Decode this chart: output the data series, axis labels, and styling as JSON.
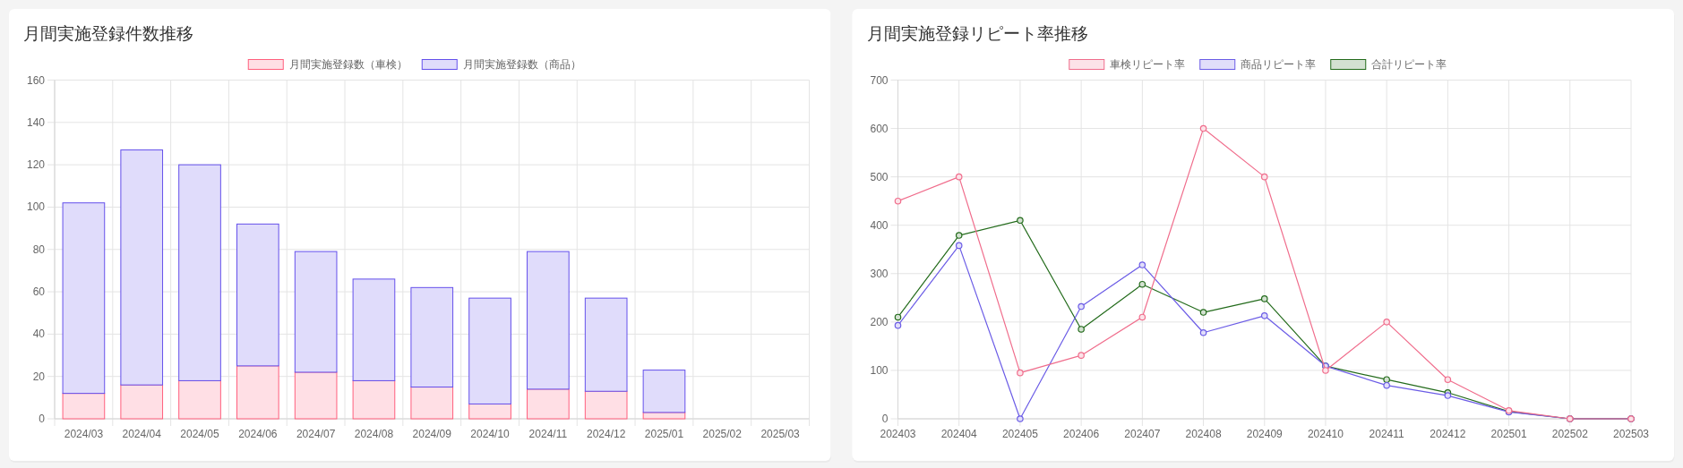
{
  "chart_data": [
    {
      "type": "bar",
      "title": "月間実施登録件数推移",
      "categories": [
        "2024/03",
        "2024/04",
        "2024/05",
        "2024/06",
        "2024/07",
        "2024/08",
        "2024/09",
        "2024/10",
        "2024/11",
        "2024/12",
        "2025/01",
        "2025/02",
        "2025/03"
      ],
      "stacked": true,
      "series": [
        {
          "name": "月間実施登録数（車検）",
          "color": "#ffdfe5",
          "values": [
            12,
            16,
            18,
            25,
            22,
            18,
            15,
            7,
            14,
            13,
            3,
            null,
            null
          ]
        },
        {
          "name": "月間実施登録数（商品）",
          "color": "#e0dcfb",
          "values": [
            90,
            111,
            102,
            67,
            57,
            48,
            47,
            50,
            65,
            44,
            20,
            null,
            null
          ]
        }
      ],
      "ylim": [
        0,
        160
      ],
      "yticks": [
        0,
        20,
        40,
        60,
        80,
        100,
        120,
        140,
        160
      ],
      "grid": true,
      "legend": "top"
    },
    {
      "type": "line",
      "title": "月間実施登録リピート率推移",
      "categories": [
        "202403",
        "202404",
        "202405",
        "202406",
        "202407",
        "202408",
        "202409",
        "202410",
        "202411",
        "202412",
        "202501",
        "202502",
        "202503"
      ],
      "series": [
        {
          "name": "車検リピート率",
          "color": "#f06d8c",
          "values": [
            450,
            500,
            95,
            131,
            210,
            600,
            500,
            100,
            200,
            81,
            17,
            0,
            0
          ]
        },
        {
          "name": "商品リピート率",
          "color": "#6b5ce6",
          "values": [
            193,
            358,
            0,
            232,
            318,
            178,
            213,
            109,
            69,
            48,
            14,
            0,
            0
          ]
        },
        {
          "name": "合計リピート率",
          "color": "#236b1b",
          "values": [
            210,
            379,
            410,
            185,
            278,
            220,
            248,
            109,
            81,
            54,
            15,
            0,
            0
          ]
        }
      ],
      "ylim": [
        0,
        700
      ],
      "yticks": [
        0,
        100,
        200,
        300,
        400,
        500,
        600,
        700
      ],
      "grid": true,
      "legend": "top",
      "marker": "circle"
    }
  ]
}
